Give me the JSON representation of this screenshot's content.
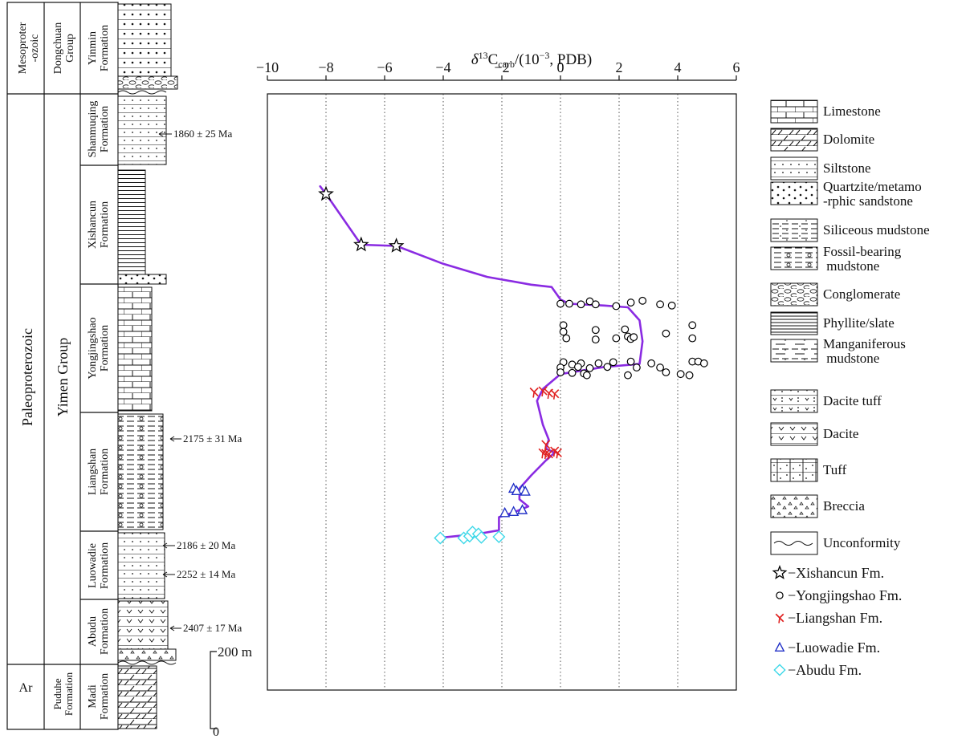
{
  "strat": {
    "eras": {
      "meso": [
        "Mesoproter",
        "-ozoic"
      ],
      "paleo": "Paleoproterozoic",
      "ar": "Ar"
    },
    "groups": {
      "dongchuan": [
        "Dongchuan",
        "Group"
      ],
      "yimen": "Yimen Group",
      "puduhe": [
        "Puduhe",
        "Formation"
      ]
    },
    "formations": {
      "yinmin": [
        "Yinmin",
        "Formation"
      ],
      "shanmuqing": [
        "Shanmuqing",
        "Formation"
      ],
      "xishancun": [
        "Xishancun",
        "Formation"
      ],
      "yongjingshao": [
        "Yongjingshao",
        "Formation"
      ],
      "liangshan": [
        "Liangshan",
        "Formation"
      ],
      "luowadie": [
        "Luowadie",
        "Formation"
      ],
      "abudu": [
        "Abudu",
        "Formation"
      ],
      "madi": [
        "Madi",
        "Formation"
      ]
    },
    "ages": [
      "1860 ± 25 Ma",
      "2175 ± 31 Ma",
      "2186 ± 20 Ma",
      "2252 ± 14 Ma",
      "2407 ± 17 Ma"
    ],
    "scale": {
      "top": "200 m",
      "bottom": "0"
    }
  },
  "legend": {
    "lithology": [
      {
        "pattern": "limestone",
        "label": [
          "Limestone"
        ]
      },
      {
        "pattern": "dolomite",
        "label": [
          "Dolomite"
        ]
      },
      {
        "pattern": "siltstone",
        "label": [
          "Siltstone"
        ]
      },
      {
        "pattern": "quartzite",
        "label": [
          "Quartzite/metamo",
          "-rphic sandstone"
        ]
      },
      {
        "pattern": "siliceous",
        "label": [
          "Siliceous mudstone"
        ]
      },
      {
        "pattern": "fossil",
        "label": [
          "Fossil-bearing",
          " mudstone"
        ]
      },
      {
        "pattern": "conglomerate",
        "label": [
          "Conglomerate"
        ]
      },
      {
        "pattern": "phyllite",
        "label": [
          "Phyllite/slate"
        ]
      },
      {
        "pattern": "manganiferous",
        "label": [
          "Manganiferous",
          " mudstone"
        ]
      },
      {
        "pattern": "dacite-tuff",
        "label": [
          "Dacite tuff"
        ]
      },
      {
        "pattern": "dacite",
        "label": [
          "Dacite"
        ]
      },
      {
        "pattern": "tuff",
        "label": [
          "Tuff"
        ]
      },
      {
        "pattern": "breccia",
        "label": [
          "Breccia"
        ]
      },
      {
        "pattern": "unconformity",
        "label": [
          "Unconformity"
        ]
      }
    ],
    "symbols": [
      {
        "marker": "star",
        "color": "#000000",
        "label": "−Xishancun Fm."
      },
      {
        "marker": "circle",
        "color": "#000000",
        "label": "−Yongjingshao Fm."
      },
      {
        "marker": "cross",
        "color": "#e0201f",
        "label": "−Liangshan Fm."
      },
      {
        "marker": "triangle",
        "color": "#2433c8",
        "label": "−Luowadie Fm."
      },
      {
        "marker": "diamond",
        "color": "#3dd8e8",
        "label": "−Abudu Fm."
      }
    ]
  },
  "chart_data": {
    "type": "scatter",
    "title": "δ13Ccarb/(10−3, PDB)",
    "x_axis": {
      "min": -10,
      "max": 6,
      "ticks": [
        -10,
        -8,
        -6,
        -4,
        -2,
        0,
        2,
        4,
        6
      ],
      "tick_labels": [
        "−10",
        "−8",
        "−6",
        "−4",
        "−2",
        "0",
        "2",
        "4",
        "6"
      ],
      "position": "top",
      "gridlines": "vertical dotted"
    },
    "y_axis": {
      "unit": "m",
      "scale": "0–200 m bar",
      "min": 0,
      "max": 1000
    },
    "trend_line_color": "#8a2be2",
    "series": [
      {
        "name": "Xishancun Fm.",
        "marker": "star",
        "color": "#000000",
        "points": [
          [
            -8.0,
            832
          ],
          [
            -6.8,
            747
          ],
          [
            -5.6,
            745
          ]
        ]
      },
      {
        "name": "Yongjingshao Fm.",
        "marker": "circle",
        "color": "#000000",
        "points": [
          [
            0.0,
            648
          ],
          [
            0.3,
            648
          ],
          [
            0.7,
            647
          ],
          [
            1.0,
            652
          ],
          [
            1.2,
            647
          ],
          [
            1.9,
            644
          ],
          [
            2.4,
            650
          ],
          [
            2.8,
            653
          ],
          [
            3.4,
            647
          ],
          [
            3.8,
            645
          ],
          [
            0.1,
            612
          ],
          [
            4.5,
            612
          ],
          [
            0.1,
            601
          ],
          [
            1.2,
            604
          ],
          [
            2.2,
            605
          ],
          [
            3.6,
            598
          ],
          [
            0.2,
            590
          ],
          [
            1.2,
            588
          ],
          [
            1.9,
            590
          ],
          [
            2.3,
            593
          ],
          [
            2.4,
            589
          ],
          [
            2.5,
            592
          ],
          [
            4.5,
            590
          ],
          [
            0.1,
            550
          ],
          [
            0.4,
            546
          ],
          [
            0.7,
            548
          ],
          [
            1.3,
            548
          ],
          [
            1.8,
            550
          ],
          [
            2.4,
            551
          ],
          [
            3.1,
            548
          ],
          [
            4.5,
            551
          ],
          [
            4.7,
            551
          ],
          [
            4.9,
            548
          ],
          [
            0.0,
            541
          ],
          [
            0.6,
            542
          ],
          [
            1.0,
            540
          ],
          [
            1.6,
            542
          ],
          [
            2.6,
            541
          ],
          [
            3.4,
            541
          ],
          [
            0.0,
            533
          ],
          [
            0.4,
            532
          ],
          [
            0.8,
            531
          ],
          [
            0.9,
            528
          ],
          [
            2.3,
            528
          ],
          [
            3.6,
            533
          ],
          [
            4.1,
            530
          ],
          [
            4.4,
            528
          ]
        ]
      },
      {
        "name": "Liangshan Fm.",
        "marker": "cross",
        "color": "#e0201f",
        "points": [
          [
            -0.9,
            500
          ],
          [
            -0.6,
            502
          ],
          [
            -0.4,
            498
          ],
          [
            -0.2,
            497
          ],
          [
            -0.5,
            412
          ],
          [
            -0.6,
            398
          ],
          [
            -0.5,
            397
          ],
          [
            -0.4,
            396
          ],
          [
            -0.2,
            401
          ],
          [
            -0.1,
            398
          ]
        ]
      },
      {
        "name": "Luowadie Fm.",
        "marker": "triangle",
        "color": "#2433c8",
        "points": [
          [
            -1.6,
            338
          ],
          [
            -1.3,
            336
          ],
          [
            -1.5,
            334
          ],
          [
            -1.2,
            333
          ],
          [
            -1.3,
            302
          ],
          [
            -1.6,
            299
          ],
          [
            -1.9,
            297
          ]
        ]
      },
      {
        "name": "Abudu Fm.",
        "marker": "diamond",
        "color": "#3dd8e8",
        "points": [
          [
            -4.1,
            255
          ],
          [
            -3.3,
            255
          ],
          [
            -3.1,
            258
          ],
          [
            -3.0,
            265
          ],
          [
            -2.8,
            262
          ],
          [
            -2.7,
            256
          ],
          [
            -2.1,
            257
          ]
        ]
      }
    ],
    "trend_line": [
      [
        -8.2,
        845
      ],
      [
        -8.0,
        832
      ],
      [
        -6.8,
        747
      ],
      [
        -5.6,
        745
      ],
      [
        -4.0,
        715
      ],
      [
        -2.5,
        693
      ],
      [
        -1.0,
        680
      ],
      [
        -0.3,
        676
      ],
      [
        0.0,
        655
      ],
      [
        0.3,
        648
      ],
      [
        1.5,
        645
      ],
      [
        2.3,
        642
      ],
      [
        2.7,
        620
      ],
      [
        2.8,
        585
      ],
      [
        2.7,
        547
      ],
      [
        1.5,
        542
      ],
      [
        0.0,
        530
      ],
      [
        -0.6,
        505
      ],
      [
        -0.8,
        485
      ],
      [
        -0.6,
        445
      ],
      [
        -0.4,
        420
      ],
      [
        -0.5,
        405
      ],
      [
        -0.2,
        398
      ],
      [
        -0.5,
        385
      ],
      [
        -1.0,
        360
      ],
      [
        -1.4,
        338
      ],
      [
        -1.4,
        320
      ],
      [
        -1.1,
        308
      ],
      [
        -1.6,
        298
      ],
      [
        -2.1,
        290
      ],
      [
        -2.1,
        268
      ],
      [
        -2.8,
        262
      ],
      [
        -4.0,
        256
      ]
    ]
  }
}
